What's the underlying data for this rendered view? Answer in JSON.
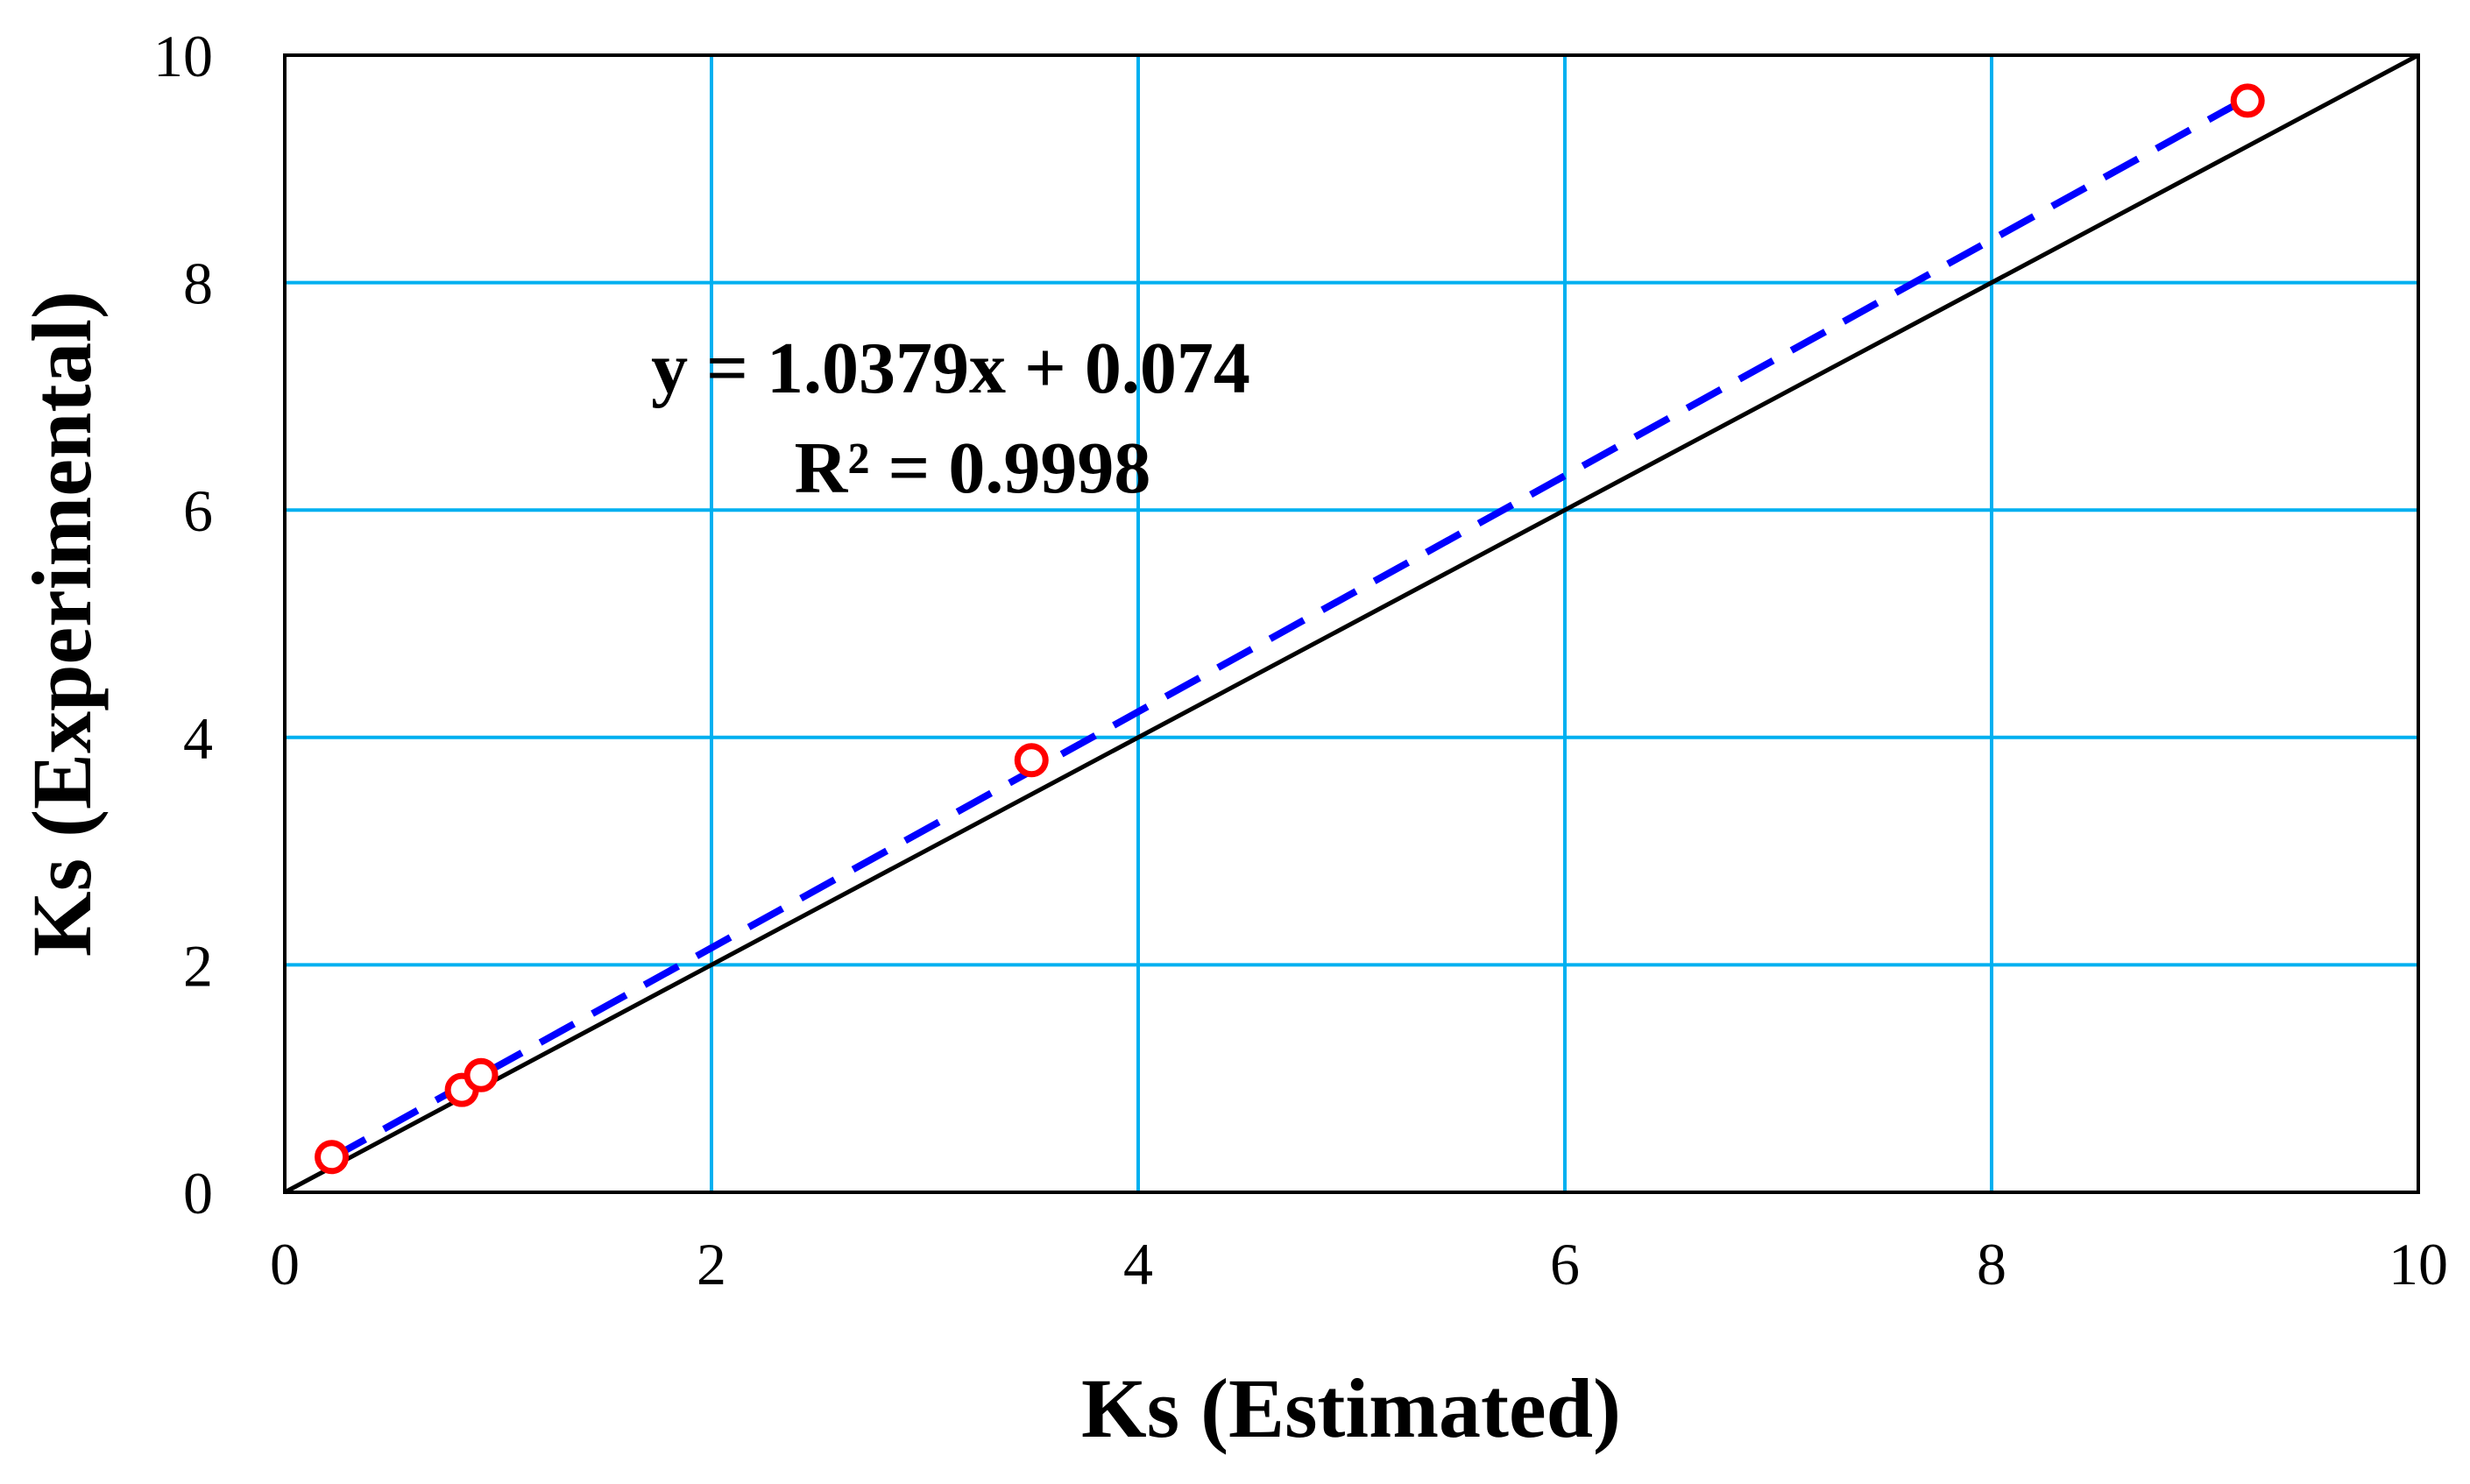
{
  "chart_data": {
    "type": "scatter",
    "title": "",
    "xlabel": "Ks (Estimated)",
    "ylabel": "Ks (Experimental)",
    "xlim": [
      0,
      10
    ],
    "ylim": [
      0,
      10
    ],
    "xticks": [
      "0",
      "2",
      "4",
      "6",
      "8",
      "10"
    ],
    "yticks": [
      "0",
      "2",
      "4",
      "6",
      "8",
      "10"
    ],
    "grid": true,
    "series": [
      {
        "points": [
          {
            "x": 0.22,
            "y": 0.31
          },
          {
            "x": 0.83,
            "y": 0.9
          },
          {
            "x": 0.92,
            "y": 1.03
          },
          {
            "x": 3.5,
            "y": 3.8
          },
          {
            "x": 9.2,
            "y": 9.6
          }
        ]
      }
    ],
    "trendline": {
      "slope": 1.0379,
      "intercept": 0.074,
      "x_range": [
        0.22,
        9.2
      ],
      "style": "dashed"
    },
    "reference_line": {
      "points": [
        [
          0,
          0
        ],
        [
          10,
          10
        ]
      ]
    },
    "annotations": {
      "equation": "y = 1.0379x + 0.074",
      "r_squared": "R² = 0.9998"
    },
    "colors": {
      "grid": "#00B0F0",
      "points": "#FF0000",
      "trendline": "#0000FF",
      "reference": "#000000"
    }
  }
}
